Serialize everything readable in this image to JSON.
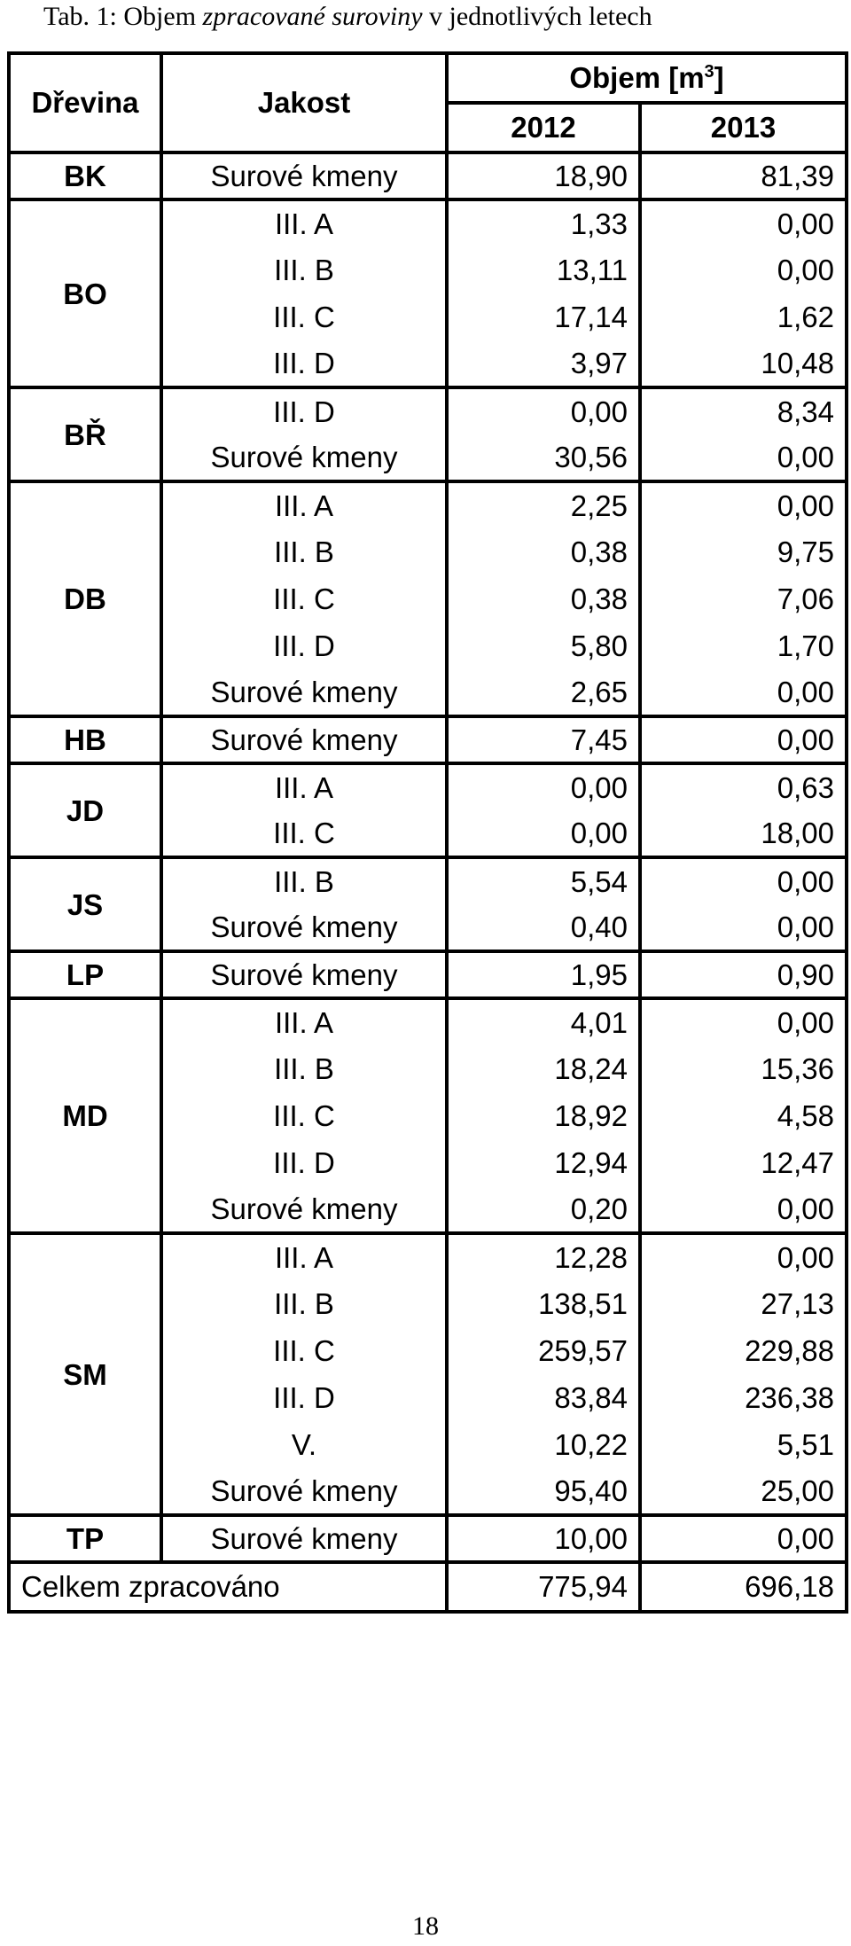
{
  "caption": {
    "prefix": "Tab. 1: Objem ",
    "italic_part": "zpracované suroviny",
    "suffix": " v jednotlivých letech"
  },
  "headers": {
    "species": "Dřevina",
    "quality": "Jakost",
    "volume": "Objem [m",
    "volume_sup": "3",
    "volume_close": "]",
    "year1": "2012",
    "year2": "2013"
  },
  "groups": [
    {
      "species": "BK",
      "rows": [
        {
          "quality": "Surové kmeny",
          "y2012": "18,90",
          "y2013": "81,39"
        }
      ]
    },
    {
      "species": "BO",
      "rows": [
        {
          "quality": "III. A",
          "y2012": "1,33",
          "y2013": "0,00"
        },
        {
          "quality": "III. B",
          "y2012": "13,11",
          "y2013": "0,00"
        },
        {
          "quality": "III. C",
          "y2012": "17,14",
          "y2013": "1,62"
        },
        {
          "quality": "III. D",
          "y2012": "3,97",
          "y2013": "10,48"
        }
      ]
    },
    {
      "species": "BŘ",
      "rows": [
        {
          "quality": "III. D",
          "y2012": "0,00",
          "y2013": "8,34"
        },
        {
          "quality": "Surové kmeny",
          "y2012": "30,56",
          "y2013": "0,00"
        }
      ]
    },
    {
      "species": "DB",
      "rows": [
        {
          "quality": "III. A",
          "y2012": "2,25",
          "y2013": "0,00"
        },
        {
          "quality": "III. B",
          "y2012": "0,38",
          "y2013": "9,75"
        },
        {
          "quality": "III. C",
          "y2012": "0,38",
          "y2013": "7,06"
        },
        {
          "quality": "III. D",
          "y2012": "5,80",
          "y2013": "1,70"
        },
        {
          "quality": "Surové kmeny",
          "y2012": "2,65",
          "y2013": "0,00"
        }
      ]
    },
    {
      "species": "HB",
      "rows": [
        {
          "quality": "Surové kmeny",
          "y2012": "7,45",
          "y2013": "0,00"
        }
      ]
    },
    {
      "species": "JD",
      "rows": [
        {
          "quality": "III. A",
          "y2012": "0,00",
          "y2013": "0,63"
        },
        {
          "quality": "III. C",
          "y2012": "0,00",
          "y2013": "18,00"
        }
      ]
    },
    {
      "species": "JS",
      "rows": [
        {
          "quality": "III. B",
          "y2012": "5,54",
          "y2013": "0,00"
        },
        {
          "quality": "Surové kmeny",
          "y2012": "0,40",
          "y2013": "0,00"
        }
      ]
    },
    {
      "species": "LP",
      "rows": [
        {
          "quality": "Surové kmeny",
          "y2012": "1,95",
          "y2013": "0,90"
        }
      ]
    },
    {
      "species": "MD",
      "rows": [
        {
          "quality": "III. A",
          "y2012": "4,01",
          "y2013": "0,00"
        },
        {
          "quality": "III. B",
          "y2012": "18,24",
          "y2013": "15,36"
        },
        {
          "quality": "III. C",
          "y2012": "18,92",
          "y2013": "4,58"
        },
        {
          "quality": "III. D",
          "y2012": "12,94",
          "y2013": "12,47"
        },
        {
          "quality": "Surové kmeny",
          "y2012": "0,20",
          "y2013": "0,00"
        }
      ]
    },
    {
      "species": "SM",
      "rows": [
        {
          "quality": "III. A",
          "y2012": "12,28",
          "y2013": "0,00"
        },
        {
          "quality": "III. B",
          "y2012": "138,51",
          "y2013": "27,13"
        },
        {
          "quality": "III. C",
          "y2012": "259,57",
          "y2013": "229,88"
        },
        {
          "quality": "III. D",
          "y2012": "83,84",
          "y2013": "236,38"
        },
        {
          "quality": "V.",
          "y2012": "10,22",
          "y2013": "5,51"
        },
        {
          "quality": "Surové kmeny",
          "y2012": "95,40",
          "y2013": "25,00"
        }
      ]
    },
    {
      "species": "TP",
      "rows": [
        {
          "quality": "Surové kmeny",
          "y2012": "10,00",
          "y2013": "0,00"
        }
      ]
    }
  ],
  "total": {
    "label": "Celkem zpracováno",
    "y2012": "775,94",
    "y2013": "696,18"
  },
  "page_number": "18"
}
